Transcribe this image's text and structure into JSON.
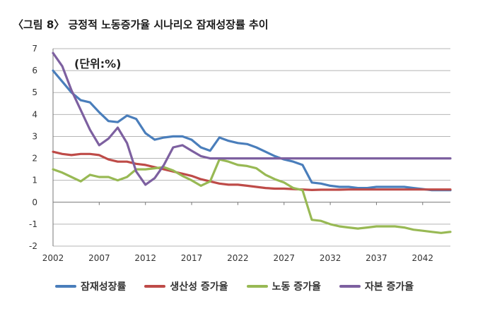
{
  "figure": {
    "title": "〈그림 8〉 긍정적 노동증가율 시나리오 잠재성장률 추이",
    "unit": "(단위:%)"
  },
  "chart_data": {
    "type": "line",
    "title": "〈그림 8〉 긍정적 노동증가율 시나리오 잠재성장률 추이",
    "unit_label": "(단위:%)",
    "xlabel": "",
    "ylabel": "",
    "xlim": [
      2002,
      2045
    ],
    "ylim": [
      -2,
      7
    ],
    "x_ticks": [
      2002,
      2007,
      2012,
      2017,
      2022,
      2027,
      2032,
      2037,
      2042
    ],
    "y_ticks": [
      -2,
      -1,
      0,
      1,
      2,
      3,
      4,
      5,
      6,
      7
    ],
    "grid": "horizontal",
    "legend_position": "bottom",
    "x": [
      2002,
      2003,
      2004,
      2005,
      2006,
      2007,
      2008,
      2009,
      2010,
      2011,
      2012,
      2013,
      2014,
      2015,
      2016,
      2017,
      2018,
      2019,
      2020,
      2021,
      2022,
      2023,
      2024,
      2025,
      2026,
      2027,
      2028,
      2029,
      2030,
      2031,
      2032,
      2033,
      2034,
      2035,
      2036,
      2037,
      2038,
      2039,
      2040,
      2041,
      2042,
      2043,
      2044,
      2045
    ],
    "series": [
      {
        "name": "잠재성장률",
        "color": "#4a7ebb",
        "values": [
          6.0,
          5.5,
          5.0,
          4.65,
          4.55,
          4.1,
          3.7,
          3.65,
          3.95,
          3.8,
          3.15,
          2.85,
          2.95,
          3.0,
          3.0,
          2.85,
          2.5,
          2.35,
          2.95,
          2.8,
          2.7,
          2.65,
          2.5,
          2.3,
          2.1,
          1.95,
          1.85,
          1.7,
          0.9,
          0.85,
          0.75,
          0.7,
          0.7,
          0.65,
          0.65,
          0.7,
          0.7,
          0.7,
          0.7,
          0.65,
          0.6,
          0.55,
          0.55,
          0.55
        ]
      },
      {
        "name": "생산성 증가율",
        "color": "#be4b48",
        "values": [
          2.3,
          2.2,
          2.15,
          2.2,
          2.2,
          2.15,
          1.95,
          1.85,
          1.85,
          1.75,
          1.7,
          1.6,
          1.5,
          1.4,
          1.3,
          1.2,
          1.05,
          0.95,
          0.85,
          0.8,
          0.8,
          0.75,
          0.7,
          0.65,
          0.62,
          0.62,
          0.6,
          0.58,
          0.56,
          0.57,
          0.57,
          0.57,
          0.58,
          0.58,
          0.58,
          0.58,
          0.58,
          0.58,
          0.58,
          0.58,
          0.58,
          0.58,
          0.58,
          0.58
        ]
      },
      {
        "name": "노동 증가율",
        "color": "#98b954",
        "values": [
          1.5,
          1.35,
          1.15,
          0.95,
          1.25,
          1.15,
          1.15,
          1.0,
          1.15,
          1.5,
          1.5,
          1.55,
          1.6,
          1.45,
          1.2,
          1.0,
          0.75,
          0.95,
          1.95,
          1.85,
          1.7,
          1.65,
          1.55,
          1.25,
          1.05,
          0.9,
          0.65,
          0.55,
          -0.8,
          -0.85,
          -1.0,
          -1.1,
          -1.15,
          -1.2,
          -1.15,
          -1.1,
          -1.1,
          -1.1,
          -1.15,
          -1.25,
          -1.3,
          -1.35,
          -1.4,
          -1.35
        ]
      },
      {
        "name": "자본 증가율",
        "color": "#7d60a0",
        "values": [
          6.8,
          6.2,
          5.1,
          4.2,
          3.3,
          2.6,
          2.9,
          3.4,
          2.7,
          1.4,
          0.8,
          1.1,
          1.7,
          2.5,
          2.6,
          2.35,
          2.1,
          2.0,
          2.0,
          2.0,
          2.0,
          2.0,
          2.0,
          2.0,
          2.0,
          2.0,
          2.0,
          2.0,
          2.0,
          2.0,
          2.0,
          2.0,
          2.0,
          2.0,
          2.0,
          2.0,
          2.0,
          2.0,
          2.0,
          2.0,
          2.0,
          2.0,
          2.0,
          2.0
        ]
      }
    ]
  }
}
